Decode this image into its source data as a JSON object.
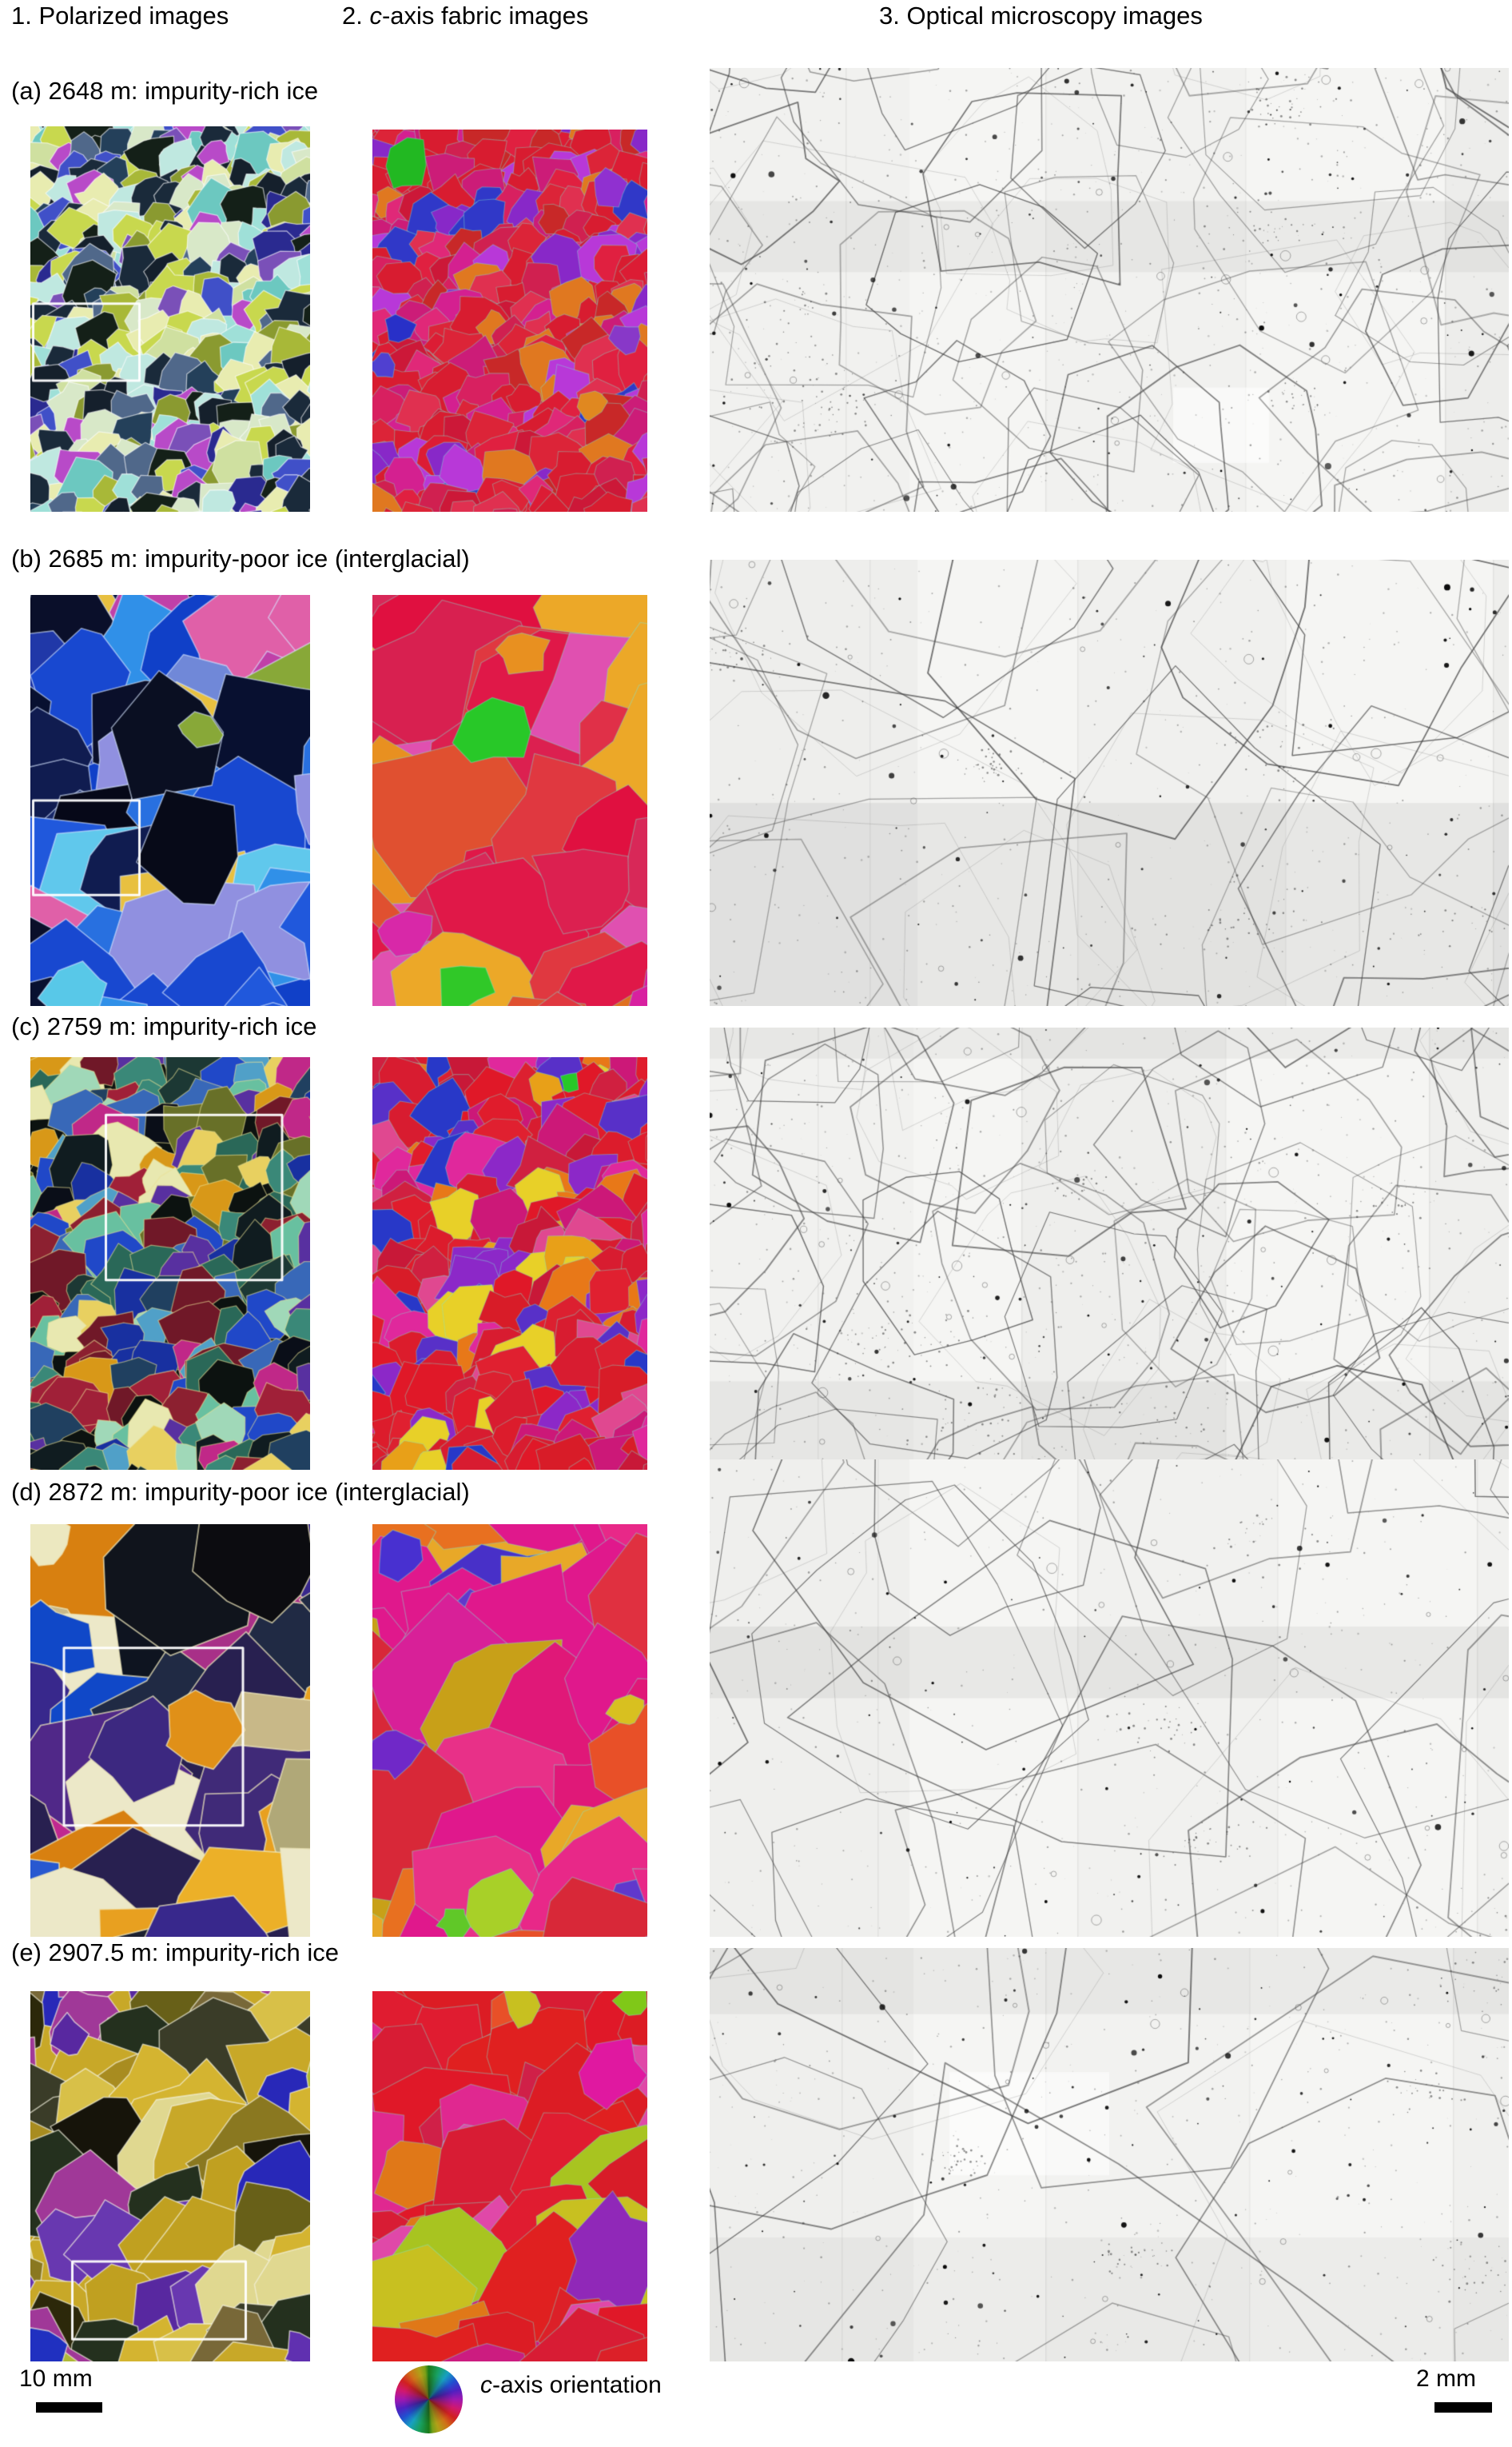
{
  "headers": {
    "col1": "1. Polarized images",
    "col2_prefix": "2. ",
    "col2_italic": "c",
    "col2_rest": "-axis fabric images",
    "col3": "3. Optical microscopy images"
  },
  "footer": {
    "left_scale": "10 mm",
    "wheel_italic": "c",
    "wheel_rest": "-axis orientation",
    "right_scale": "2 mm"
  },
  "colors": {
    "text": "#000000",
    "optical_background": "#f5f5f3",
    "grain_boundary": "rgba(70,70,70,0.75)",
    "highlight_rect": "rgba(255,255,255,0.95)"
  },
  "rows": [
    {
      "label": "(a) 2648 m: impurity-rich ice",
      "polarized": {
        "seed": 11,
        "grain": 30,
        "stroke": "rgba(255,255,255,0.6)",
        "strokeWidth": 1.3,
        "palette": [
          "#9fe0d8",
          "#bfe8e0",
          "#6cc8c0",
          "#cfe0a0",
          "#c8d84e",
          "#a8b838",
          "#8a9a30",
          "#1a2a3a",
          "#15202c",
          "#24405a",
          "#2a2a90",
          "#4050c8",
          "#7a50b8",
          "#b84ac8",
          "#e8ecb0",
          "#50688a",
          "#142018",
          "#d8e8c8",
          "#c8d84e",
          "#1a2a3a"
        ],
        "rect": {
          "x": 0.01,
          "y": 0.46,
          "w": 0.38,
          "h": 0.2
        }
      },
      "fabric": {
        "seed": 12,
        "grain": 32,
        "stroke": "rgba(130,232,210,0.4)",
        "strokeWidth": 1.1,
        "palette": [
          "#dc1c34",
          "#e02040",
          "#d81c30",
          "#d02050",
          "#cc1c78",
          "#d42090",
          "#e02878",
          "#c82828",
          "#e03050",
          "#8828c8",
          "#3038c8",
          "#e07820",
          "#b838d8",
          "#d81c30",
          "#dc2438",
          "#cc1838",
          "#d82060",
          "#d81c30"
        ],
        "features": [
          {
            "x": 0.13,
            "y": 0.09,
            "r": 0.09,
            "color": "#22b822"
          },
          {
            "x": 0.1,
            "y": 0.52,
            "r": 0.06,
            "color": "#2830c8"
          },
          {
            "x": 0.86,
            "y": 0.15,
            "r": 0.07,
            "color": "#9030d0"
          },
          {
            "x": 0.93,
            "y": 0.55,
            "r": 0.06,
            "color": "#8838c8"
          },
          {
            "x": 0.8,
            "y": 0.72,
            "r": 0.05,
            "color": "#e08820"
          },
          {
            "x": 0.04,
            "y": 0.62,
            "r": 0.05,
            "color": "#5040d0"
          }
        ]
      },
      "optical": {
        "seed": 911,
        "cell": 175,
        "dots": 110,
        "specks": 700,
        "clusters": 6,
        "bands": [
          [
            0.3,
            0.46,
            0.045
          ]
        ],
        "bright": [
          [
            0.58,
            0.72,
            0.12,
            0.17
          ]
        ],
        "tileW": 250,
        "tileOffset": 80
      }
    },
    {
      "label": "(b) 2685 m: impurity-poor ice (interglacial)",
      "polarized": {
        "seed": 21,
        "grain": 95,
        "stroke": "rgba(215,230,255,0.6)",
        "strokeWidth": 1.6,
        "palette": [
          "#1040c8",
          "#1848d0",
          "#2058dc",
          "#2870e0",
          "#3090e8",
          "#60c8ec",
          "#0a1440",
          "#0a0f2a",
          "#060818",
          "#101c50",
          "#182868",
          "#7088d8",
          "#2038a8",
          "#c040a8",
          "#e060a8",
          "#e8c040",
          "#88a838",
          "#9090e0",
          "#081030",
          "#1848d0"
        ],
        "features": [
          {
            "x": 0.45,
            "y": 0.35,
            "r": 0.22,
            "color": "#0a0f22"
          },
          {
            "x": 0.55,
            "y": 0.62,
            "r": 0.2,
            "color": "#070a18"
          },
          {
            "x": 0.15,
            "y": 0.97,
            "r": 0.12,
            "color": "#58c8e8"
          },
          {
            "x": 0.6,
            "y": 0.33,
            "r": 0.08,
            "color": "#88a838"
          }
        ],
        "rect": {
          "x": 0.01,
          "y": 0.5,
          "w": 0.38,
          "h": 0.23
        }
      },
      "fabric": {
        "seed": 22,
        "grain": 105,
        "stroke": "rgba(130,232,210,0.4)",
        "strokeWidth": 1.3,
        "palette": [
          "#e01848",
          "#dc2050",
          "#d82858",
          "#e03840",
          "#e05030",
          "#e07020",
          "#e89020",
          "#eca828",
          "#d820a0",
          "#e050b0",
          "#c020b0",
          "#e01848",
          "#d82858",
          "#e03048",
          "#e01040",
          "#d82050"
        ],
        "features": [
          {
            "x": 0.44,
            "y": 0.33,
            "r": 0.13,
            "color": "#28c828"
          },
          {
            "x": 0.33,
            "y": 0.95,
            "r": 0.1,
            "color": "#30c828"
          },
          {
            "x": 0.55,
            "y": 0.14,
            "r": 0.1,
            "color": "#e89020"
          },
          {
            "x": 0.12,
            "y": 0.82,
            "r": 0.1,
            "color": "#d828a8"
          }
        ]
      },
      "optical": {
        "seed": 922,
        "cell": 290,
        "dots": 70,
        "specks": 420,
        "clusters": 5,
        "bands": [
          [
            0.545,
            1.0,
            0.055
          ]
        ],
        "bright": [],
        "tileW": 260,
        "tileOffset": 60
      }
    },
    {
      "label": "(c) 2759 m: impurity-rich ice",
      "polarized": {
        "seed": 31,
        "grain": 40,
        "stroke": "rgba(235,225,150,0.55)",
        "strokeWidth": 1.3,
        "palette": [
          "#0c1210",
          "#101c20",
          "#1c3834",
          "#2a6858",
          "#3a8878",
          "#68c0a0",
          "#a0d8b8",
          "#2048c8",
          "#1830a0",
          "#3868b8",
          "#50a0c8",
          "#a02038",
          "#701828",
          "#8c2030",
          "#d89818",
          "#e8d060",
          "#e8e8b0",
          "#c02888",
          "#5830a0",
          "#687028",
          "#0a0e18",
          "#204060"
        ],
        "rect": {
          "x": 0.27,
          "y": 0.14,
          "w": 0.63,
          "h": 0.4
        }
      },
      "fabric": {
        "seed": 32,
        "grain": 38,
        "stroke": "rgba(130,232,210,0.4)",
        "strokeWidth": 1.1,
        "palette": [
          "#e01828",
          "#dc1c2c",
          "#d81c30",
          "#e02030",
          "#d02040",
          "#cc1878",
          "#e0289c",
          "#e87818",
          "#e8a018",
          "#8c28c8",
          "#5830c8",
          "#2838c8",
          "#c81838",
          "#e8d028",
          "#e04890",
          "#d81c28",
          "#e01c2c",
          "#dc2030",
          "#d81c30",
          "#e01828"
        ],
        "features": [
          {
            "x": 0.72,
            "y": 0.06,
            "r": 0.035,
            "color": "#28c828"
          }
        ]
      },
      "optical": {
        "seed": 933,
        "cell": 165,
        "dots": 95,
        "specks": 600,
        "clusters": 7,
        "bands": [
          [
            0.0,
            0.07,
            0.04
          ],
          [
            0.8,
            1.0,
            0.045
          ]
        ],
        "bright": [],
        "tileW": 255,
        "tileOffset": 120
      }
    },
    {
      "label": "(d) 2872 m: impurity-poor ice (interglacial)",
      "polarized": {
        "seed": 41,
        "grain": 110,
        "stroke": "rgba(240,232,190,0.7)",
        "strokeWidth": 1.8,
        "palette": [
          "#e8e4b8",
          "#ece8c8",
          "#0e1420",
          "#0c1018",
          "#202a44",
          "#1c2030",
          "#1048c8",
          "#2858d0",
          "#38288c",
          "#402a78",
          "#502888",
          "#e09018",
          "#ecb028",
          "#e8a020",
          "#d88010",
          "#c02890",
          "#a83088",
          "#c8b888",
          "#b0a878",
          "#40b8c8",
          "#282050"
        ],
        "features": [
          {
            "x": 0.55,
            "y": 0.1,
            "r": 0.3,
            "color": "#10141c"
          },
          {
            "x": 0.8,
            "y": 0.07,
            "r": 0.22,
            "color": "#0c0c10"
          },
          {
            "x": 0.06,
            "y": 0.04,
            "r": 0.1,
            "color": "#ece8c0"
          },
          {
            "x": 0.1,
            "y": 0.28,
            "r": 0.14,
            "color": "#1048c8"
          },
          {
            "x": 0.38,
            "y": 0.55,
            "r": 0.18,
            "color": "#3c2880"
          },
          {
            "x": 0.62,
            "y": 0.5,
            "r": 0.16,
            "color": "#e09018"
          }
        ],
        "rect": {
          "x": 0.12,
          "y": 0.3,
          "w": 0.64,
          "h": 0.43
        }
      },
      "fabric": {
        "seed": 42,
        "grain": 108,
        "stroke": "rgba(130,232,210,0.4)",
        "strokeWidth": 1.3,
        "palette": [
          "#e01878",
          "#e0188c",
          "#d82098",
          "#e83088",
          "#e06018",
          "#e87020",
          "#e85028",
          "#d82838",
          "#e03040",
          "#8828c8",
          "#6038cc",
          "#4830c8",
          "#e8a828",
          "#d818a0",
          "#e82888",
          "#c8a018",
          "#e0188c"
        ],
        "features": [
          {
            "x": 0.45,
            "y": 0.92,
            "r": 0.12,
            "color": "#a8d028"
          },
          {
            "x": 0.3,
            "y": 0.97,
            "r": 0.06,
            "color": "#60c828"
          },
          {
            "x": 0.93,
            "y": 0.45,
            "r": 0.07,
            "color": "#d8c020"
          },
          {
            "x": 0.08,
            "y": 0.55,
            "r": 0.1,
            "color": "#7028c8"
          },
          {
            "x": 0.1,
            "y": 0.08,
            "r": 0.09,
            "color": "#4830d0"
          }
        ]
      },
      "optical": {
        "seed": 944,
        "cell": 310,
        "dots": 80,
        "specks": 380,
        "clusters": 4,
        "bands": [
          [
            0.35,
            0.5,
            0.05
          ]
        ],
        "bright": [],
        "tileW": 250,
        "tileOffset": 40
      }
    },
    {
      "label": "(e) 2907.5 m: impurity-rich ice",
      "polarized": {
        "seed": 51,
        "grain": 72,
        "stroke": "rgba(245,242,225,0.65)",
        "strokeWidth": 1.6,
        "palette": [
          "#c8a828",
          "#d4b430",
          "#c0a020",
          "#a88c20",
          "#8a7820",
          "#686018",
          "#48400e",
          "#2c280a",
          "#16140a",
          "#3a3c28",
          "#24301e",
          "#e0d890",
          "#786838",
          "#5828a0",
          "#6838b0",
          "#2828b8",
          "#a03898",
          "#b0b838",
          "#d8c048",
          "#c8a828"
        ],
        "features": [
          {
            "x": 0.13,
            "y": 0.12,
            "r": 0.07,
            "color": "#5828a0"
          },
          {
            "x": 0.04,
            "y": 0.97,
            "r": 0.08,
            "color": "#2030c0"
          },
          {
            "x": 0.97,
            "y": 0.97,
            "r": 0.07,
            "color": "#6030b0"
          }
        ],
        "rect": {
          "x": 0.15,
          "y": 0.73,
          "w": 0.62,
          "h": 0.21
        }
      },
      "fabric": {
        "seed": 52,
        "grain": 80,
        "stroke": "rgba(130,232,210,0.4)",
        "strokeWidth": 1.2,
        "palette": [
          "#e01828",
          "#dc1c24",
          "#e02020",
          "#d81c34",
          "#d02048",
          "#cc1c80",
          "#e02890",
          "#e85028",
          "#e07818",
          "#c8c020",
          "#a8c420",
          "#e048a8",
          "#9028b8",
          "#d81c28",
          "#e01c30",
          "#dc2028",
          "#d81c34"
        ],
        "features": [
          {
            "x": 0.94,
            "y": 0.03,
            "r": 0.06,
            "color": "#80c818"
          },
          {
            "x": 0.55,
            "y": 0.04,
            "r": 0.08,
            "color": "#c8c020"
          },
          {
            "x": 0.88,
            "y": 0.22,
            "r": 0.12,
            "color": "#e018a0"
          }
        ]
      },
      "optical": {
        "seed": 955,
        "cell": 360,
        "dots": 95,
        "specks": 420,
        "clusters": 5,
        "bands": [
          [
            0.0,
            0.16,
            0.045
          ],
          [
            0.7,
            1.0,
            0.035
          ]
        ],
        "bright": [
          [
            0.3,
            0.3,
            0.2,
            0.25
          ]
        ],
        "tileW": 255,
        "tileOffset": 90
      }
    }
  ]
}
